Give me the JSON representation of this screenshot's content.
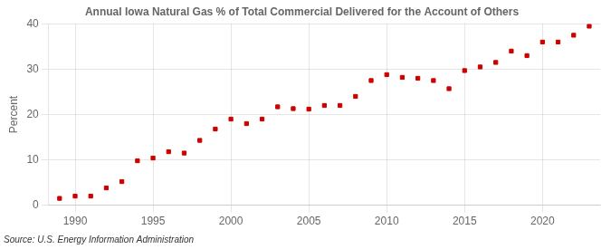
{
  "chart_data": {
    "type": "scatter",
    "title": "Annual Iowa Natural Gas % of Total Commercial Delivered for the Account of Others",
    "ylabel": "Percent",
    "annotations": [
      "Source: U.S. Energy Information Administration"
    ],
    "x": [
      1989,
      1990,
      1991,
      1992,
      1993,
      1994,
      1995,
      1996,
      1997,
      1998,
      1999,
      2000,
      2001,
      2002,
      2003,
      2004,
      2005,
      2006,
      2007,
      2008,
      2009,
      2010,
      2011,
      2012,
      2013,
      2014,
      2015,
      2016,
      2017,
      2018,
      2019,
      2020,
      2021,
      2022,
      2023
    ],
    "values": [
      1.5,
      2.0,
      2.0,
      3.8,
      5.2,
      9.8,
      10.4,
      11.8,
      11.5,
      14.3,
      16.8,
      19.0,
      18.0,
      19.0,
      21.7,
      21.3,
      21.2,
      22.0,
      22.0,
      24.0,
      27.5,
      28.8,
      28.2,
      28.0,
      27.5,
      25.7,
      29.7,
      30.5,
      31.5,
      34.0,
      33.0,
      36.0,
      36.0,
      37.5,
      39.5
    ],
    "color": "#cc0000",
    "marker": "square",
    "xlim": [
      1988.3,
      2023.7
    ],
    "ylim": [
      0,
      40
    ],
    "xticks": [
      1990,
      1995,
      2000,
      2005,
      2010,
      2015,
      2020
    ],
    "yticks": [
      0,
      10,
      20,
      30,
      40
    ],
    "grid": true
  }
}
